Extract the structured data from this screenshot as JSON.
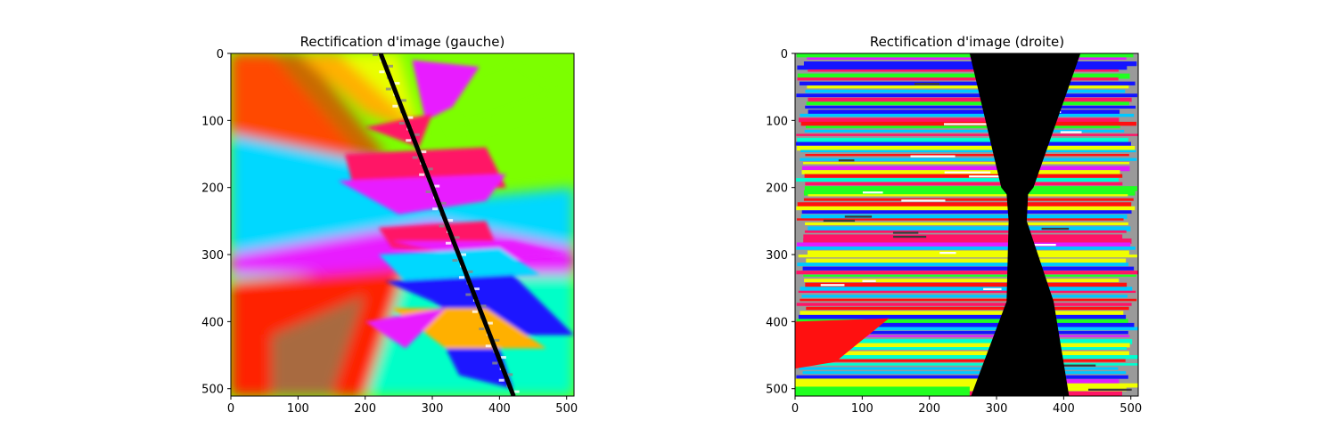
{
  "chart_data": [
    {
      "type": "image",
      "title": "Rectification d'image (gauche)",
      "xlim": [
        0,
        511
      ],
      "ylim": [
        511,
        0
      ],
      "xticks": [
        0,
        100,
        200,
        300,
        400,
        500
      ],
      "yticks": [
        0,
        100,
        200,
        300,
        400,
        500
      ],
      "black_line": [
        [
          223,
          0
        ],
        [
          421,
          511
        ]
      ],
      "colors": {
        "green": "#7cff00",
        "cyan": "#00d8ff",
        "red": "#ff2200",
        "aqua": "#00ffc8",
        "magenta": "#e81cff",
        "pink": "#ff1466",
        "blue": "#1a14ff",
        "orange": "#ffb000",
        "yellow": "#e8ff00"
      }
    },
    {
      "type": "image",
      "title": "Rectification d'image (droite)",
      "xlim": [
        0,
        511
      ],
      "ylim": [
        511,
        0
      ],
      "xticks": [
        0,
        100,
        200,
        300,
        400,
        500
      ],
      "yticks": [
        0,
        100,
        200,
        300,
        400,
        500
      ],
      "black_region": [
        [
          260,
          0
        ],
        [
          425,
          0
        ],
        [
          355,
          200
        ],
        [
          347,
          210
        ],
        [
          345,
          250
        ],
        [
          385,
          370
        ],
        [
          408,
          511
        ],
        [
          262,
          511
        ],
        [
          315,
          370
        ],
        [
          318,
          250
        ],
        [
          315,
          210
        ],
        [
          307,
          200
        ]
      ],
      "colors": {
        "cyan": "#00c8ff",
        "aqua": "#00ffd0",
        "pink": "#ff1466",
        "red": "#ff1010",
        "blue": "#1414ff",
        "yellow": "#f0ff00",
        "green": "#20ff20",
        "magenta": "#e01cff"
      }
    }
  ]
}
